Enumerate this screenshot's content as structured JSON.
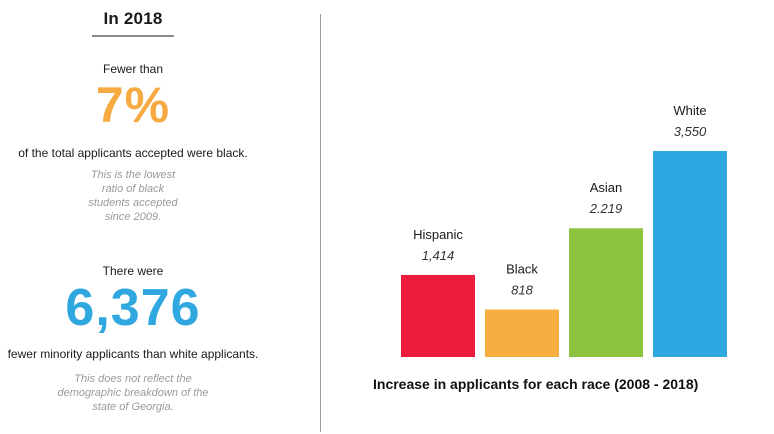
{
  "left_panel": {
    "heading": "In 2018",
    "stat1": {
      "lead": "Fewer than",
      "value": "7%",
      "value_color": "#f7a942",
      "desc": "of the total applicants accepted were black.",
      "note_lines": [
        "This is the lowest",
        "ratio of black",
        "students accepted",
        "since 2009."
      ]
    },
    "stat2": {
      "lead": "There were",
      "value": "6,376",
      "value_color": "#2fa8df",
      "desc": "fewer minority applicants than white applicants.",
      "note_lines": [
        "This does not reflect the",
        "demographic breakdown of the",
        "state of Georgia."
      ]
    }
  },
  "chart_data": {
    "type": "bar",
    "title": "Increase in applicants for each race  (2008 - 2018)",
    "categories": [
      "Hispanic",
      "Black",
      "Asian",
      "White"
    ],
    "values": [
      1414,
      818,
      2219,
      3550
    ],
    "value_labels": [
      "1,414",
      "818",
      "2.219",
      "3,550"
    ],
    "colors": [
      "#ed1c3f",
      "#f7ae40",
      "#8cc43f",
      "#2ea8e0"
    ],
    "ylim": [
      0,
      3550
    ],
    "grid": false,
    "legend": "none"
  }
}
